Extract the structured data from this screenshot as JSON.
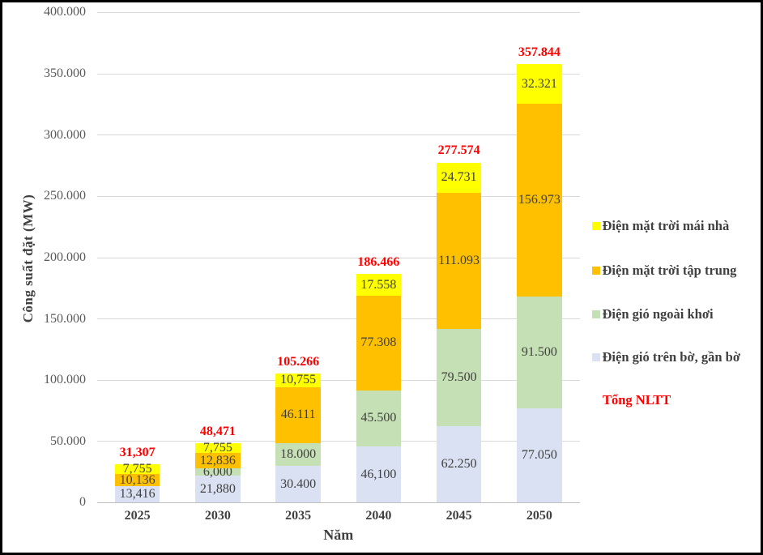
{
  "chart_data": {
    "type": "bar",
    "stacked": true,
    "xlabel": "Năm",
    "ylabel": "Công suất đặt (MW)",
    "ylim": [
      0,
      400000
    ],
    "ytick_step": 50000,
    "grid": true,
    "legend_position": "right",
    "yticks": [
      {
        "value": 0,
        "label": "0"
      },
      {
        "value": 50000,
        "label": "50.000"
      },
      {
        "value": 100000,
        "label": "100.000"
      },
      {
        "value": 150000,
        "label": "150.000"
      },
      {
        "value": 200000,
        "label": "200.000"
      },
      {
        "value": 250000,
        "label": "250.000"
      },
      {
        "value": 300000,
        "label": "300.000"
      },
      {
        "value": 350000,
        "label": "350.000"
      },
      {
        "value": 400000,
        "label": "400.000"
      }
    ],
    "categories": [
      "2025",
      "2030",
      "2035",
      "2040",
      "2045",
      "2050"
    ],
    "series": [
      {
        "name": "Điện gió trên bờ, gần bờ",
        "color": "#d9e1f2",
        "values": [
          13416,
          21880,
          30400,
          46100,
          62250,
          77050
        ],
        "labels": [
          "13,416",
          "21,880",
          "30.400",
          "46,100",
          "62.250",
          "77.050"
        ]
      },
      {
        "name": "Điện gió ngoài khơi",
        "color": "#c5e0b4",
        "values": [
          0,
          6000,
          18000,
          45500,
          79500,
          91500
        ],
        "labels": [
          "",
          "6,000",
          "18.000",
          "45.500",
          "79.500",
          "91.500"
        ]
      },
      {
        "name": "Điện mặt trời tập trung",
        "color": "#ffc000",
        "values": [
          10136,
          12836,
          46111,
          77308,
          111093,
          156973
        ],
        "labels": [
          "10,136",
          "12,836",
          "46.111",
          "77.308",
          "111.093",
          "156.973"
        ]
      },
      {
        "name": "Điện mặt trời mái nhà",
        "color": "#ffff00",
        "values": [
          7755,
          7755,
          10755,
          17558,
          24731,
          32321
        ],
        "labels": [
          "7,755",
          "7,755",
          "10,755",
          "17.558",
          "24.731",
          "32.321"
        ]
      }
    ],
    "totals": {
      "name": "Tổng NLTT",
      "color": "#ff0000",
      "values": [
        31307,
        48471,
        105266,
        186466,
        277574,
        357844
      ],
      "labels": [
        "31,307",
        "48,471",
        "105.266",
        "186.466",
        "277.574",
        "357.844"
      ]
    },
    "legend": [
      {
        "label": "Điện mặt trời mái nhà",
        "color": "#ffff00",
        "marker": true
      },
      {
        "label": "Điện mặt trời tập trung",
        "color": "#ffc000",
        "marker": true
      },
      {
        "label": "Điện gió ngoài khơi",
        "color": "#c5e0b4",
        "marker": true
      },
      {
        "label": "Điện gió trên bờ, gần bờ",
        "color": "#d9e1f2",
        "marker": true
      },
      {
        "label": "Tổng NLTT",
        "color": "#ff0000",
        "marker": false
      }
    ]
  }
}
